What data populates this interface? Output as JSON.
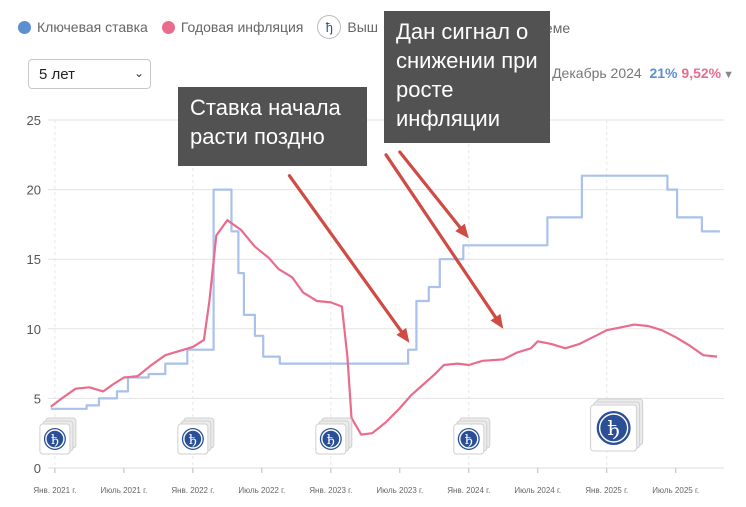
{
  "legend": {
    "key_rate": "Ключевая ставка",
    "inflation": "Годовая инфляция",
    "news_visible": "Выш",
    "news_suffix": "о теме"
  },
  "controls": {
    "period_select": "5 лет"
  },
  "readout": {
    "date": "Декабрь 2024",
    "key_rate_value": "21%",
    "inflation_value": "9,52%"
  },
  "annotations": {
    "callout_1": "Ставка начала расти поздно",
    "callout_2": "Дан сигнал о снижении при росте инфляции"
  },
  "colors": {
    "key_rate": "#a9c1eb",
    "inflation": "#ea6c8d",
    "arrow": "#cf4b43",
    "callout_bg": "#525252",
    "grid": "#e3e3e3"
  },
  "chart_data": {
    "type": "line",
    "ylim": [
      0,
      25
    ],
    "yticks": [
      0,
      5,
      10,
      15,
      20,
      25
    ],
    "x_range": [
      2020.95,
      2025.85
    ],
    "xticks": [
      {
        "x": 2021.0,
        "label": "Янв. 2021 г."
      },
      {
        "x": 2021.5,
        "label": "Июль 2021 г."
      },
      {
        "x": 2022.0,
        "label": "Янв. 2022 г."
      },
      {
        "x": 2022.5,
        "label": "Июль 2022 г."
      },
      {
        "x": 2023.0,
        "label": "Янв. 2023 г."
      },
      {
        "x": 2023.5,
        "label": "Июль 2023 г."
      },
      {
        "x": 2024.0,
        "label": "Янв. 2024 г."
      },
      {
        "x": 2024.5,
        "label": "Июль 2024 г."
      },
      {
        "x": 2025.0,
        "label": "Янв. 2025 г."
      },
      {
        "x": 2025.5,
        "label": "Июль 2025 г."
      }
    ],
    "vgrid": [
      2021.0,
      2022.0,
      2023.0,
      2024.0,
      2025.0
    ],
    "series": [
      {
        "name": "Ключевая ставка",
        "step": true,
        "points": [
          [
            2020.97,
            4.25
          ],
          [
            2021.23,
            4.5
          ],
          [
            2021.32,
            5.0
          ],
          [
            2021.45,
            5.5
          ],
          [
            2021.53,
            6.5
          ],
          [
            2021.68,
            6.75
          ],
          [
            2021.8,
            7.5
          ],
          [
            2021.96,
            8.5
          ],
          [
            2022.15,
            20.0
          ],
          [
            2022.28,
            17.0
          ],
          [
            2022.33,
            14.0
          ],
          [
            2022.37,
            11.0
          ],
          [
            2022.45,
            9.5
          ],
          [
            2022.51,
            8.0
          ],
          [
            2022.63,
            7.5
          ],
          [
            2023.56,
            8.5
          ],
          [
            2023.62,
            12.0
          ],
          [
            2023.71,
            13.0
          ],
          [
            2023.79,
            15.0
          ],
          [
            2023.96,
            16.0
          ],
          [
            2024.57,
            18.0
          ],
          [
            2024.82,
            21.0
          ],
          [
            2025.44,
            20.0
          ],
          [
            2025.51,
            18.0
          ],
          [
            2025.69,
            17.0
          ],
          [
            2025.82,
            17.0
          ]
        ]
      },
      {
        "name": "Годовая инфляция",
        "step": false,
        "points": [
          [
            2020.97,
            4.4
          ],
          [
            2021.05,
            5.0
          ],
          [
            2021.15,
            5.7
          ],
          [
            2021.25,
            5.8
          ],
          [
            2021.35,
            5.5
          ],
          [
            2021.42,
            6.0
          ],
          [
            2021.5,
            6.5
          ],
          [
            2021.6,
            6.6
          ],
          [
            2021.7,
            7.4
          ],
          [
            2021.8,
            8.1
          ],
          [
            2021.9,
            8.4
          ],
          [
            2022.0,
            8.7
          ],
          [
            2022.08,
            9.2
          ],
          [
            2022.12,
            12.0
          ],
          [
            2022.17,
            16.7
          ],
          [
            2022.25,
            17.8
          ],
          [
            2022.35,
            17.1
          ],
          [
            2022.45,
            15.9
          ],
          [
            2022.55,
            15.1
          ],
          [
            2022.62,
            14.3
          ],
          [
            2022.72,
            13.7
          ],
          [
            2022.8,
            12.6
          ],
          [
            2022.9,
            12.0
          ],
          [
            2023.0,
            11.9
          ],
          [
            2023.08,
            11.6
          ],
          [
            2023.12,
            8.0
          ],
          [
            2023.15,
            3.6
          ],
          [
            2023.22,
            2.4
          ],
          [
            2023.3,
            2.5
          ],
          [
            2023.4,
            3.3
          ],
          [
            2023.5,
            4.3
          ],
          [
            2023.58,
            5.2
          ],
          [
            2023.67,
            6.0
          ],
          [
            2023.75,
            6.7
          ],
          [
            2023.82,
            7.4
          ],
          [
            2023.92,
            7.5
          ],
          [
            2024.0,
            7.4
          ],
          [
            2024.1,
            7.7
          ],
          [
            2024.25,
            7.8
          ],
          [
            2024.35,
            8.3
          ],
          [
            2024.45,
            8.6
          ],
          [
            2024.5,
            9.1
          ],
          [
            2024.6,
            8.9
          ],
          [
            2024.7,
            8.6
          ],
          [
            2024.8,
            8.9
          ],
          [
            2024.92,
            9.5
          ],
          [
            2025.0,
            9.9
          ],
          [
            2025.1,
            10.1
          ],
          [
            2025.2,
            10.3
          ],
          [
            2025.3,
            10.2
          ],
          [
            2025.4,
            9.9
          ],
          [
            2025.5,
            9.4
          ],
          [
            2025.6,
            8.8
          ],
          [
            2025.7,
            8.1
          ],
          [
            2025.8,
            8.0
          ]
        ]
      }
    ],
    "news_markers": [
      {
        "x": 2021.0,
        "size": "small"
      },
      {
        "x": 2022.0,
        "size": "small"
      },
      {
        "x": 2023.0,
        "size": "small"
      },
      {
        "x": 2024.0,
        "size": "small"
      },
      {
        "x": 2025.05,
        "size": "large"
      }
    ],
    "arrows": [
      {
        "from": [
          2022.7,
          21.0
        ],
        "to": [
          2023.57,
          9.0
        ]
      },
      {
        "from": [
          2023.4,
          22.5
        ],
        "to": [
          2024.25,
          10.0
        ]
      },
      {
        "from": [
          2023.5,
          22.7
        ],
        "to": [
          2024.0,
          16.5
        ]
      }
    ]
  }
}
